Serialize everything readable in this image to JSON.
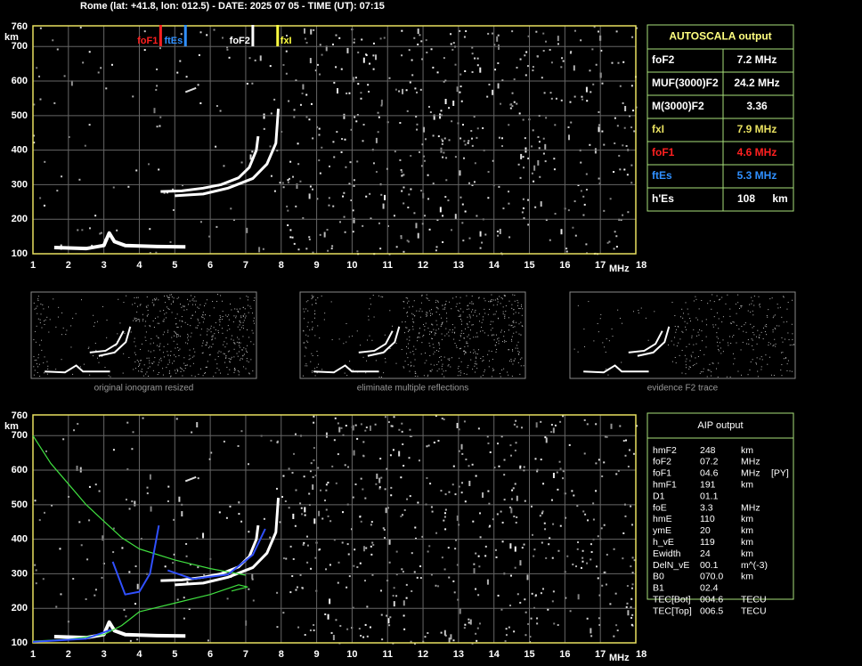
{
  "header": {
    "title": "Rome (lat: +41.8, lon: 012.5) - DATE: 2025 07 05 - TIME (UT): 07:15"
  },
  "top_plot": {
    "y_unit": "km",
    "x_unit": "MHz",
    "y_ticks": [
      "760",
      "700",
      "600",
      "500",
      "400",
      "300",
      "200",
      "100"
    ],
    "x_ticks": [
      "1",
      "2",
      "3",
      "4",
      "5",
      "6",
      "7",
      "8",
      "9",
      "10",
      "11",
      "12",
      "13",
      "14",
      "15",
      "16",
      "17",
      "18"
    ],
    "markers": [
      {
        "label": "foF1",
        "color": "#ff2020"
      },
      {
        "label": "ftEs",
        "color": "#3090ff"
      },
      {
        "label": "foF2",
        "color": "#ffffff"
      },
      {
        "label": "fxI",
        "color": "#ffff40"
      }
    ]
  },
  "autoscala": {
    "title": "AUTOSCALA output",
    "rows": [
      {
        "name": "foF2",
        "value": "7.2 MHz",
        "color": "#ffffff"
      },
      {
        "name": "MUF(3000)F2",
        "value": "24.2 MHz",
        "color": "#ffffff"
      },
      {
        "name": "M(3000)F2",
        "value": "3.36",
        "color": "#ffffff"
      },
      {
        "name": "fxI",
        "value": "7.9 MHz",
        "color": "#e8e060"
      },
      {
        "name": "foF1",
        "value": "4.6 MHz",
        "color": "#ff2020"
      },
      {
        "name": "ftEs",
        "value": "5.3 MHz",
        "color": "#3090ff"
      },
      {
        "name": "h'Es",
        "value": "108",
        "unit": "km",
        "color": "#ffffff"
      }
    ]
  },
  "thumbnails": [
    "original ionogram resized",
    "eliminate multiple reflections",
    "evidence F2 trace"
  ],
  "bottom_plot": {
    "y_unit": "km",
    "x_unit": "MHz",
    "y_ticks": [
      "760",
      "700",
      "600",
      "500",
      "400",
      "300",
      "200",
      "100"
    ],
    "x_ticks": [
      "1",
      "2",
      "3",
      "4",
      "5",
      "6",
      "7",
      "8",
      "9",
      "10",
      "11",
      "12",
      "13",
      "14",
      "15",
      "16",
      "17",
      "18"
    ]
  },
  "aip": {
    "title": "AIP output",
    "rows": [
      [
        "hmF2",
        "248",
        "km"
      ],
      [
        "foF2",
        "07.2",
        "MHz"
      ],
      [
        "foF1",
        "04.6",
        "MHz",
        "[PY]"
      ],
      [
        "hmF1",
        "191",
        "km"
      ],
      [
        "D1",
        "01.1"
      ],
      [
        "foE",
        "3.3",
        "MHz"
      ],
      [
        "hmE",
        "110",
        "km"
      ],
      [
        "ymE",
        "20",
        "km"
      ],
      [
        "h_vE",
        "119",
        "km"
      ],
      [
        "Ewidth",
        "24",
        "km"
      ],
      [
        "DelN_vE",
        "00.1",
        "m^(-3)"
      ],
      [
        "B0",
        "070.0",
        "km"
      ],
      [
        "B1",
        "02.4"
      ],
      [
        "TEC[Bot]",
        "004.6",
        "TECU"
      ],
      [
        "TEC[Top]",
        "006.5",
        "TECU"
      ]
    ]
  }
}
